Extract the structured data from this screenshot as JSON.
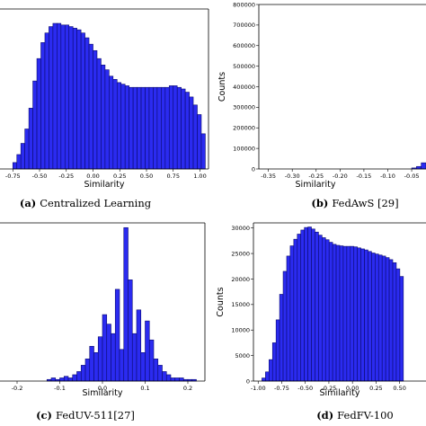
{
  "chart_data": [
    {
      "id": "a",
      "type": "bar",
      "caption_label": "(a)",
      "caption_text": "Centralized Learning",
      "xlabel": "Similarity",
      "ylabel": "",
      "xlim": [
        -0.87,
        1.08
      ],
      "ylim": [
        0,
        100
      ],
      "xticks": [
        "-0.75",
        "-0.50",
        "-0.25",
        "0.00",
        "0.25",
        "0.50",
        "0.75",
        "1.00"
      ],
      "yticks": [],
      "bins": {
        "start": -0.75,
        "width": 0.0375,
        "values": [
          4,
          9,
          16,
          25,
          38,
          55,
          69,
          79,
          85,
          89,
          91,
          91,
          90,
          90,
          89,
          88,
          87,
          85,
          82,
          78,
          74,
          69,
          65,
          62,
          58,
          56,
          54,
          53,
          52,
          51,
          51,
          51,
          51,
          51,
          51,
          51,
          51,
          51,
          51,
          52,
          52,
          51,
          50,
          48,
          45,
          40,
          34,
          22
        ]
      }
    },
    {
      "id": "b",
      "type": "bar",
      "caption_label": "(b)",
      "caption_text": "FedAwS [29]",
      "xlabel": "Similarity",
      "ylabel": "Counts",
      "xlim": [
        -0.37,
        -0.02
      ],
      "ylim": [
        0,
        800000
      ],
      "xticks": [
        "-0.35",
        "-0.30",
        "-0.25",
        "-0.20",
        "-0.15",
        "-0.10",
        "-0.05"
      ],
      "yticks": [
        "0",
        "100000",
        "200000",
        "300000",
        "400000",
        "500000",
        "600000",
        "700000",
        "800000"
      ],
      "bins": {
        "start": -0.05,
        "width": 0.01,
        "values": [
          5000,
          12000,
          30000
        ]
      }
    },
    {
      "id": "c",
      "type": "bar",
      "caption_label": "(c)",
      "caption_text": "FedUV-511[27]",
      "xlabel": "Similarity",
      "ylabel": "",
      "xlim": [
        -0.24,
        0.24
      ],
      "ylim": [
        0,
        100
      ],
      "xticks": [
        "-0.2",
        "-0.1",
        "0.0",
        "0.1",
        "0.2"
      ],
      "yticks": [],
      "bins": {
        "start": -0.13,
        "width": 0.01,
        "values": [
          1,
          2,
          1,
          2,
          3,
          2,
          4,
          6,
          10,
          14,
          22,
          18,
          28,
          42,
          36,
          30,
          58,
          20,
          97,
          64,
          30,
          45,
          18,
          38,
          26,
          14,
          10,
          6,
          4,
          2,
          2,
          2,
          1,
          1,
          1
        ]
      }
    },
    {
      "id": "d",
      "type": "bar",
      "caption_label": "(d)",
      "caption_text": "FedFV-100",
      "xlabel": "Similarity",
      "ylabel": "Counts",
      "xlim": [
        -1.05,
        0.78
      ],
      "ylim": [
        0,
        31000
      ],
      "xticks": [
        "-1.00",
        "-0.75",
        "-0.50",
        "-0.25",
        "0.00",
        "0.25",
        "0.50"
      ],
      "yticks": [
        "0",
        "5000",
        "10000",
        "15000",
        "20000",
        "25000",
        "30000"
      ],
      "bins": {
        "start": -0.96,
        "width": 0.0375,
        "values": [
          600,
          1800,
          4200,
          7500,
          12000,
          17000,
          21500,
          24500,
          26500,
          27800,
          28800,
          29600,
          30100,
          30200,
          29800,
          29200,
          28600,
          28100,
          27700,
          27200,
          26800,
          26600,
          26500,
          26400,
          26400,
          26400,
          26300,
          26100,
          25900,
          25700,
          25400,
          25100,
          24900,
          24700,
          24500,
          24200,
          23800,
          23200,
          22000,
          20500
        ]
      }
    }
  ],
  "colors": {
    "bar_fill": "#2b2bf0",
    "bar_edge": "#0a0a6e",
    "axis": "#000000"
  }
}
